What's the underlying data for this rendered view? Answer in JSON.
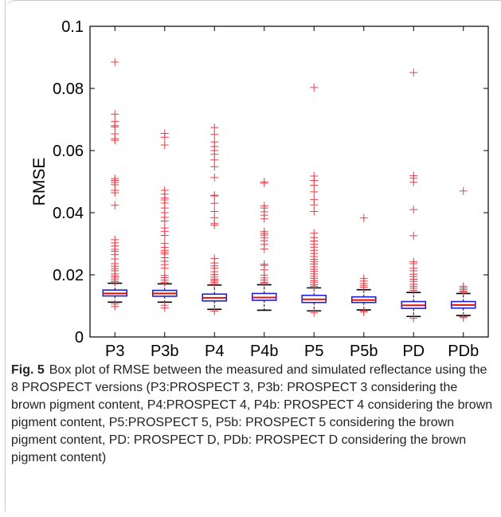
{
  "chart_data": {
    "type": "box",
    "ylabel": "RMSE",
    "ylim": [
      0,
      0.1
    ],
    "yticks": [
      "0",
      "0.02",
      "0.04",
      "0.06",
      "0.08",
      "0.1"
    ],
    "categories": [
      "P3",
      "P3b",
      "P4",
      "P4b",
      "P5",
      "P5b",
      "PD",
      "PDb"
    ],
    "boxes": [
      {
        "q1": 0.0132,
        "median": 0.014,
        "q3": 0.0151,
        "whisker_low": 0.0112,
        "whisker_high": 0.0173,
        "outliers": [
          0.0885,
          0.0717,
          0.0694,
          0.068,
          0.0676,
          0.0654,
          0.0638,
          0.0633,
          0.051,
          0.0504,
          0.0497,
          0.049,
          0.0472,
          0.0464,
          0.0424,
          0.0313,
          0.0303,
          0.0293,
          0.0282,
          0.0276,
          0.0265,
          0.0251,
          0.0236,
          0.0228,
          0.022,
          0.0213,
          0.0203,
          0.0196,
          0.019,
          0.0184,
          0.0178,
          0.0106,
          0.0098
        ]
      },
      {
        "q1": 0.0131,
        "median": 0.014,
        "q3": 0.015,
        "whisker_low": 0.0112,
        "whisker_high": 0.0171,
        "outliers": [
          0.0655,
          0.0643,
          0.0618,
          0.0472,
          0.046,
          0.0447,
          0.0441,
          0.0431,
          0.0415,
          0.04,
          0.0385,
          0.0373,
          0.0351,
          0.034,
          0.0327,
          0.0301,
          0.0288,
          0.0279,
          0.0272,
          0.0267,
          0.0255,
          0.0244,
          0.0233,
          0.0221,
          0.0198,
          0.0191,
          0.0183,
          0.0176,
          0.0102,
          0.0094
        ]
      },
      {
        "q1": 0.0116,
        "median": 0.0126,
        "q3": 0.0138,
        "whisker_low": 0.0089,
        "whisker_high": 0.0167,
        "outliers": [
          0.0674,
          0.0652,
          0.0628,
          0.0613,
          0.06,
          0.0588,
          0.057,
          0.0548,
          0.0513,
          0.0456,
          0.0454,
          0.043,
          0.0404,
          0.0384,
          0.0366,
          0.036,
          0.0253,
          0.0238,
          0.0229,
          0.0221,
          0.021,
          0.0201,
          0.0193,
          0.0186,
          0.0181,
          0.0176,
          0.017,
          0.0083
        ]
      },
      {
        "q1": 0.0118,
        "median": 0.0127,
        "q3": 0.014,
        "whisker_low": 0.0086,
        "whisker_high": 0.0168,
        "outliers": [
          0.0499,
          0.0495,
          0.0422,
          0.0415,
          0.0403,
          0.0392,
          0.038,
          0.0339,
          0.0333,
          0.0328,
          0.032,
          0.031,
          0.0298,
          0.0283,
          0.0234,
          0.023,
          0.0216,
          0.0199,
          0.019,
          0.0183,
          0.0176,
          0.0174
        ]
      },
      {
        "q1": 0.0111,
        "median": 0.0121,
        "q3": 0.0134,
        "whisker_low": 0.0084,
        "whisker_high": 0.0158,
        "outliers": [
          0.0803,
          0.0518,
          0.0504,
          0.0488,
          0.0467,
          0.0442,
          0.0425,
          0.0404,
          0.0334,
          0.032,
          0.0309,
          0.0298,
          0.0289,
          0.0279,
          0.0269,
          0.0259,
          0.025,
          0.0243,
          0.0235,
          0.0226,
          0.0218,
          0.0211,
          0.0203,
          0.0195,
          0.0188,
          0.0181,
          0.0175,
          0.0168,
          0.0163,
          0.0078
        ]
      },
      {
        "q1": 0.0111,
        "median": 0.0119,
        "q3": 0.0129,
        "whisker_low": 0.0087,
        "whisker_high": 0.0152,
        "outliers": [
          0.0383,
          0.0188,
          0.018,
          0.0172,
          0.0166,
          0.016,
          0.0084,
          0.008
        ]
      },
      {
        "q1": 0.0092,
        "median": 0.0102,
        "q3": 0.0114,
        "whisker_low": 0.0066,
        "whisker_high": 0.0143,
        "outliers": [
          0.0851,
          0.0519,
          0.0511,
          0.0498,
          0.041,
          0.0326,
          0.0242,
          0.0236,
          0.0221,
          0.0213,
          0.0202,
          0.0194,
          0.0186,
          0.0179,
          0.017,
          0.0163,
          0.0157,
          0.015,
          0.006
        ]
      },
      {
        "q1": 0.0093,
        "median": 0.0103,
        "q3": 0.0114,
        "whisker_low": 0.0069,
        "whisker_high": 0.014,
        "outliers": [
          0.047,
          0.0163,
          0.0158,
          0.0153,
          0.0148,
          0.0145,
          0.0065,
          0.0062
        ]
      }
    ]
  },
  "caption": {
    "label": "Fig. 5",
    "text": "Box plot of RMSE between the measured and simulated reflectance using the 8 PROSPECT versions (P3:PROSPECT 3, P3b: PROSPECT 3 considering the brown pigment content, P4:PROSPECT 4, P4b: PROSPECT 4 considering the brown pigment content, P5:PROSPECT 5, P5b: PROSPECT 5 considering the brown pigment content, PD: PROSPECT D, PDb: PROSPECT D considering the brown pigment content)"
  },
  "colors": {
    "box": "#1f1fd6",
    "median": "#e01010",
    "outlier": "#e8404a",
    "whisker": "#000000"
  }
}
